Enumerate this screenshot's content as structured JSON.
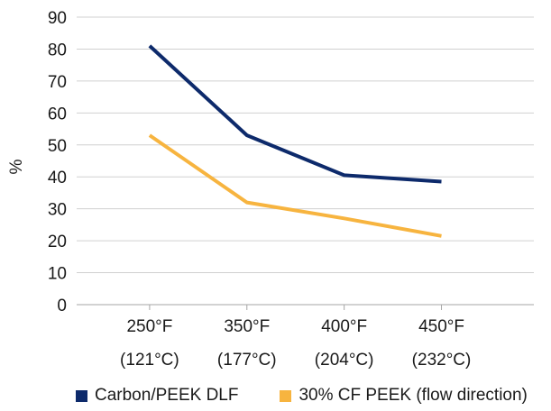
{
  "chart_data": {
    "type": "line",
    "categories": [
      {
        "line1": "250°F",
        "line2": "(121°C)"
      },
      {
        "line1": "350°F",
        "line2": "(177°C)"
      },
      {
        "line1": "400°F",
        "line2": "(204°C)"
      },
      {
        "line1": "450°F",
        "line2": "(232°C)"
      }
    ],
    "series": [
      {
        "name": "Carbon/PEEK DLF",
        "values": [
          81,
          53,
          40.5,
          38.5
        ],
        "color": "#0d2a6b"
      },
      {
        "name": "30% CF PEEK (flow direction)",
        "values": [
          53,
          32,
          27,
          21.5
        ],
        "color": "#f7b43f"
      }
    ],
    "ylabel": "%",
    "ylim": [
      0,
      90
    ],
    "yticks": [
      0,
      10,
      20,
      30,
      40,
      50,
      60,
      70,
      80,
      90
    ],
    "grid": true,
    "legend_position": "bottom"
  }
}
